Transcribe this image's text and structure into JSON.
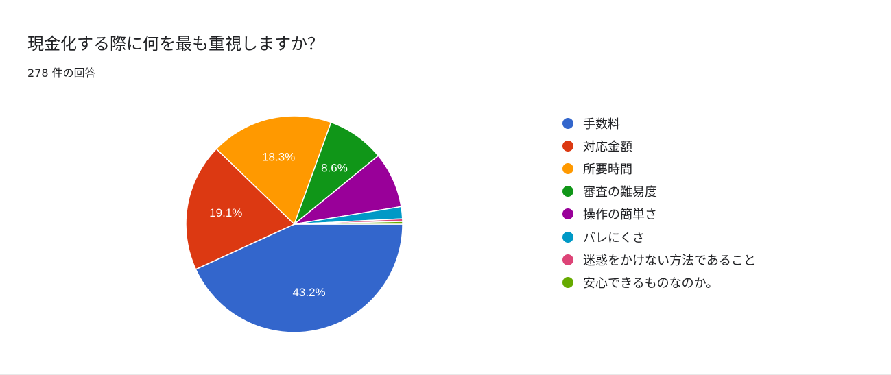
{
  "header": {
    "title": "現金化する際に何を最も重視しますか？",
    "subtitle": "278 件の回答"
  },
  "chart_data": {
    "type": "pie",
    "title": "現金化する際に何を最も重視しますか？",
    "subtitle": "278 件の回答",
    "legend_position": "right",
    "slices": [
      {
        "label": "手数料",
        "value": 43.2,
        "display": "43.2%",
        "color": "#3366cc"
      },
      {
        "label": "対応金額",
        "value": 19.1,
        "display": "19.1%",
        "color": "#dc3912"
      },
      {
        "label": "所要時間",
        "value": 18.3,
        "display": "18.3%",
        "color": "#ff9900"
      },
      {
        "label": "審査の難易度",
        "value": 8.6,
        "display": "8.6%",
        "color": "#109618"
      },
      {
        "label": "操作の簡単さ",
        "value": 8.3,
        "display": "",
        "color": "#990099"
      },
      {
        "label": "バレにくさ",
        "value": 1.8,
        "display": "",
        "color": "#0099c6"
      },
      {
        "label": "迷惑をかけない方法であること",
        "value": 0.4,
        "display": "",
        "color": "#dd4477"
      },
      {
        "label": "安心できるものなのか。",
        "value": 0.4,
        "display": "",
        "color": "#66aa00"
      }
    ]
  }
}
